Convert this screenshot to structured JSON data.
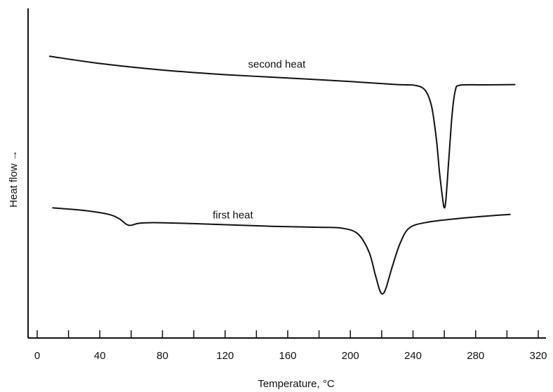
{
  "chart_data": {
    "type": "line",
    "xlabel": "Temperature, °C",
    "ylabel": "Heat flow →",
    "xlim": [
      -5,
      325
    ],
    "ylim": [
      0,
      100
    ],
    "xticks": [
      0,
      40,
      80,
      120,
      160,
      200,
      240,
      280,
      320
    ],
    "minor_xticks": [
      20,
      60,
      100,
      140,
      180,
      220,
      260,
      300
    ],
    "grid": false,
    "series": [
      {
        "name": "second heat",
        "points": [
          [
            8,
            85.5
          ],
          [
            40,
            83.3
          ],
          [
            80,
            81.3
          ],
          [
            120,
            79.9
          ],
          [
            160,
            78.9
          ],
          [
            200,
            77.8
          ],
          [
            230,
            76.9
          ],
          [
            242,
            76.6
          ],
          [
            248,
            75.0
          ],
          [
            252,
            70.0
          ],
          [
            255,
            60.0
          ],
          [
            257,
            50.0
          ],
          [
            259,
            42.0
          ],
          [
            260,
            39.5
          ],
          [
            261,
            42.0
          ],
          [
            263,
            55.0
          ],
          [
            265,
            68.0
          ],
          [
            267,
            75.0
          ],
          [
            270,
            76.7
          ],
          [
            285,
            76.8
          ],
          [
            305,
            76.9
          ]
        ]
      },
      {
        "name": "first heat",
        "points": [
          [
            10,
            39.5
          ],
          [
            30,
            38.7
          ],
          [
            45,
            37.6
          ],
          [
            52,
            36.3
          ],
          [
            57,
            34.5
          ],
          [
            60,
            34.2
          ],
          [
            65,
            34.8
          ],
          [
            75,
            35.0
          ],
          [
            100,
            34.7
          ],
          [
            150,
            33.9
          ],
          [
            180,
            33.6
          ],
          [
            195,
            33.3
          ],
          [
            205,
            31.5
          ],
          [
            212,
            26.0
          ],
          [
            216,
            19.0
          ],
          [
            219,
            14.2
          ],
          [
            221,
            13.5
          ],
          [
            223,
            15.5
          ],
          [
            227,
            22.0
          ],
          [
            232,
            29.0
          ],
          [
            238,
            33.5
          ],
          [
            250,
            35.2
          ],
          [
            270,
            36.3
          ],
          [
            290,
            37.1
          ],
          [
            302,
            37.5
          ]
        ]
      }
    ],
    "annotations": [
      {
        "text": "second heat",
        "x": 153,
        "y": 82.0
      },
      {
        "text": "first heat",
        "x": 125,
        "y": 36.3
      }
    ]
  }
}
